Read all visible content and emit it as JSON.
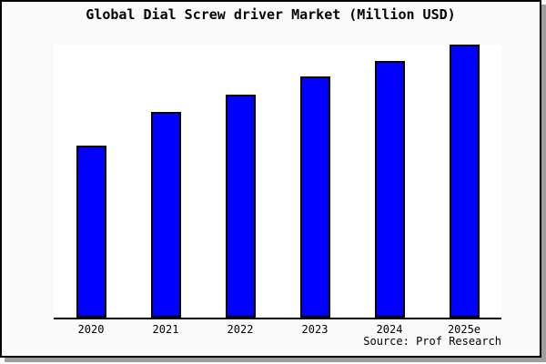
{
  "chart_data": {
    "type": "bar",
    "title": "Global Dial Screw driver Market (Million USD)",
    "categories": [
      "2020",
      "2021",
      "2022",
      "2023",
      "2024",
      "2025e"
    ],
    "values": [
      63,
      75.3,
      81.7,
      88.3,
      94,
      100
    ],
    "value_scale_note": "y-axis has no tick labels; values are relative bar heights normalized so 2025e = 100",
    "xlabel": "",
    "ylabel": "",
    "legend": "none",
    "grid": false,
    "bar_color": "#0000ff",
    "bar_border_color": "#000000",
    "plot_background": "#ffffff",
    "frame_background": "#fafafa",
    "source": "Source: Prof Research"
  }
}
